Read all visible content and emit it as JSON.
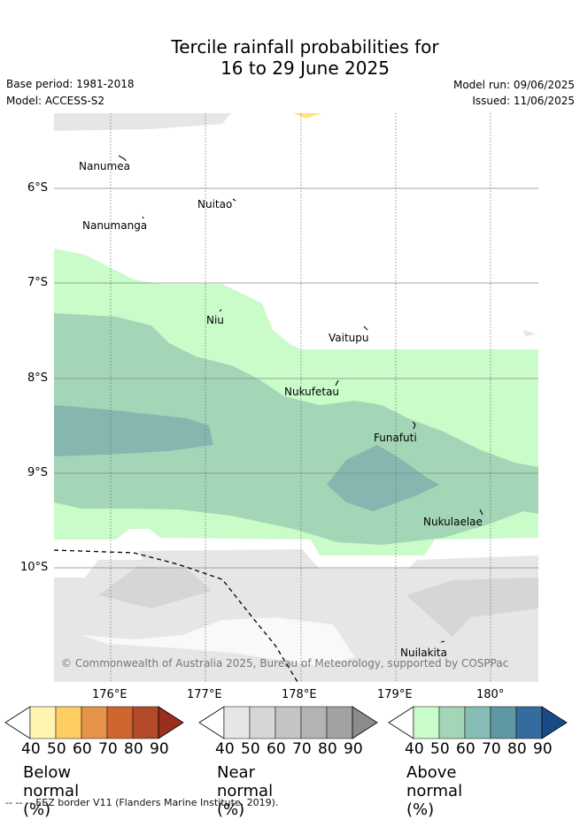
{
  "title": {
    "line1": "Tercile rainfall probabilities for",
    "line2": "16 to 29 June 2025"
  },
  "meta": {
    "base_period": "Base period: 1981-2018",
    "model": "Model: ACCESS-S2",
    "model_run": "Model run: 09/06/2025",
    "issued": "Issued: 11/06/2025"
  },
  "axes": {
    "lat_labels": [
      "6°S",
      "7°S",
      "8°S",
      "9°S",
      "10°S"
    ],
    "lon_labels": [
      "176°E",
      "177°E",
      "178°E",
      "179°E",
      "180°"
    ]
  },
  "places": [
    "Nanumea",
    "Nuitao",
    "Nanumanga",
    "Niu",
    "Vaitupu",
    "Nukufetau",
    "Funafuti",
    "Nukulaelae",
    "Nuilakita"
  ],
  "copyright": "© Commonwealth of Australia 2025, Bureau of Meteorology, supported by COSPPac",
  "colorbars": [
    {
      "title": "Below normal (%)",
      "ticks": [
        "40",
        "50",
        "60",
        "70",
        "80",
        "90"
      ],
      "colors": [
        "#fff5b0",
        "#ffce63",
        "#e5944a",
        "#d1652f",
        "#b44a28",
        "#9a2f1f"
      ]
    },
    {
      "title": "Near normal (%)",
      "ticks": [
        "40",
        "50",
        "60",
        "70",
        "80",
        "90"
      ],
      "colors": [
        "#e6e6e6",
        "#d6d6d6",
        "#c4c4c4",
        "#b3b3b3",
        "#a2a2a2",
        "#8c8c8c"
      ]
    },
    {
      "title": "Above normal (%)",
      "ticks": [
        "40",
        "50",
        "60",
        "70",
        "80",
        "90"
      ],
      "colors": [
        "#c9fcc9",
        "#a3d6b6",
        "#86bdb4",
        "#5f97a2",
        "#356b9e",
        "#1a4a86"
      ]
    }
  ],
  "footnote": "--  --  -- EEZ border V11 (Flanders Marine Institute, 2019)."
}
